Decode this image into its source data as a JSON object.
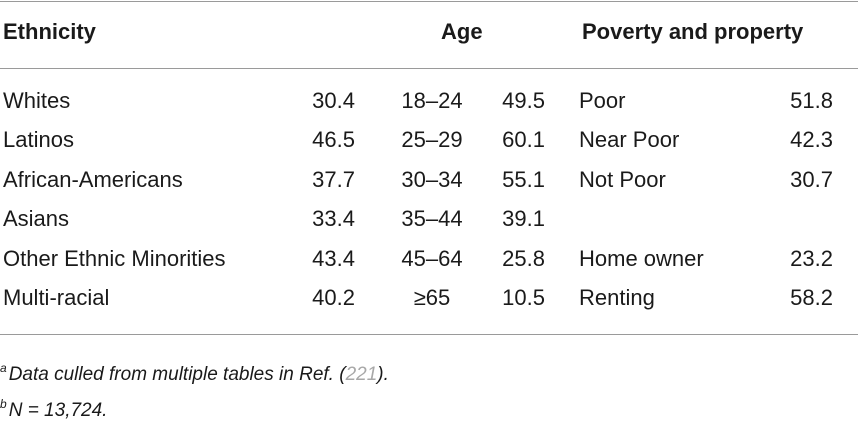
{
  "headers": {
    "ethnicity": "Ethnicity",
    "age": "Age",
    "poverty": "Poverty and property"
  },
  "rows": [
    {
      "eth": "Whites",
      "eth_val": "30.4",
      "age": "18–24",
      "age_val": "49.5",
      "pov": "Poor",
      "pov_val": "51.8"
    },
    {
      "eth": "Latinos",
      "eth_val": "46.5",
      "age": "25–29",
      "age_val": "60.1",
      "pov": "Near Poor",
      "pov_val": "42.3"
    },
    {
      "eth": "African-Americans",
      "eth_val": "37.7",
      "age": "30–34",
      "age_val": "55.1",
      "pov": "Not Poor",
      "pov_val": "30.7"
    },
    {
      "eth": "Asians",
      "eth_val": "33.4",
      "age": "35–44",
      "age_val": "39.1",
      "pov": "",
      "pov_val": ""
    },
    {
      "eth": "Other Ethnic Minorities",
      "eth_val": "43.4",
      "age": "45–64",
      "age_val": "25.8",
      "pov": "Home owner",
      "pov_val": "23.2"
    },
    {
      "eth": "Multi-racial",
      "eth_val": "40.2",
      "age": "≥65",
      "age_val": "10.5",
      "pov": "Renting",
      "pov_val": "58.2"
    }
  ],
  "footnotes": {
    "a_marker": "a",
    "a_text": "Data culled from multiple tables in Ref. (",
    "a_ref": "221",
    "a_end": ").",
    "b_marker": "b",
    "b_text": "N = 13,724."
  }
}
